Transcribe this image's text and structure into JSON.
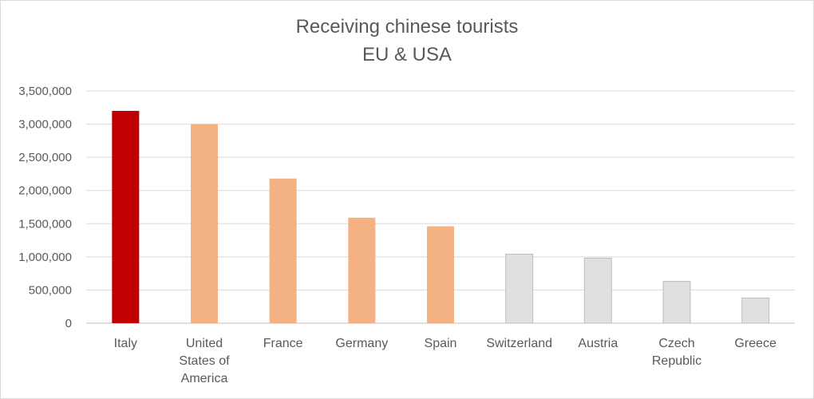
{
  "chart_data": {
    "type": "bar",
    "title": "Receiving chinese tourists",
    "subtitle": "EU & USA",
    "categories": [
      "Italy",
      "United States of America",
      "France",
      "Germany",
      "Spain",
      "Switzerland",
      "Austria",
      "Czech Republic",
      "Greece"
    ],
    "category_lines": [
      [
        "Italy"
      ],
      [
        "United",
        "States of",
        "America"
      ],
      [
        "France"
      ],
      [
        "Germany"
      ],
      [
        "Spain"
      ],
      [
        "Switzerland"
      ],
      [
        "Austria"
      ],
      [
        "Czech",
        "Republic"
      ],
      [
        "Greece"
      ]
    ],
    "values": [
      3200000,
      3000000,
      2180000,
      1590000,
      1460000,
      1040000,
      980000,
      630000,
      380000
    ],
    "bar_colors": [
      "#c00000",
      "#f4b183",
      "#f4b183",
      "#f4b183",
      "#f4b183",
      "#e0e0e0",
      "#e0e0e0",
      "#e0e0e0",
      "#e0e0e0"
    ],
    "ylim": [
      0,
      3500000
    ],
    "yticks": [
      0,
      500000,
      1000000,
      1500000,
      2000000,
      2500000,
      3000000,
      3500000
    ],
    "ytick_labels": [
      "0",
      "500,000",
      "1,000,000",
      "1,500,000",
      "2,000,000",
      "2,500,000",
      "3,000,000",
      "3,500,000"
    ],
    "grid": true,
    "legend": "none"
  }
}
